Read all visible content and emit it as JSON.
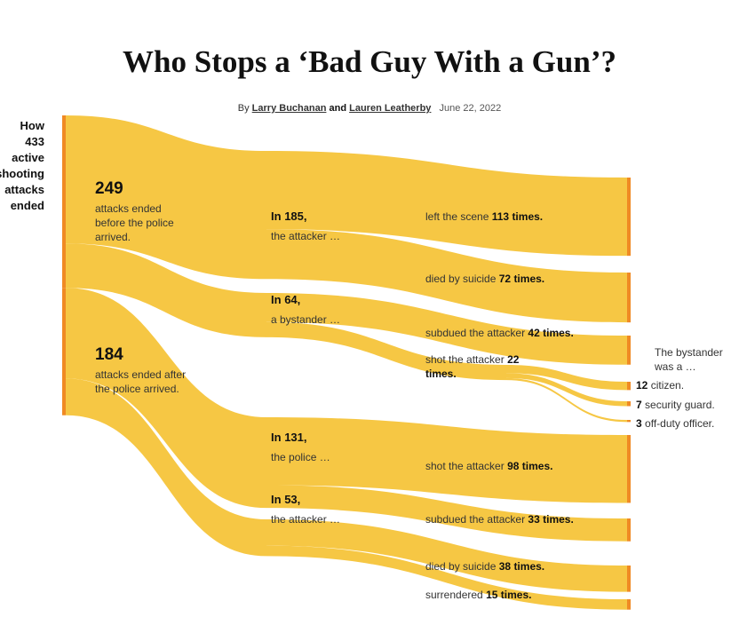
{
  "header": {
    "title": "Who Stops a ‘Bad Guy With a Gun’?",
    "by": "By",
    "authors": [
      "Larry Buchanan",
      "Lauren Leatherby"
    ],
    "and": "and",
    "date": "June 22, 2022"
  },
  "chart_data": {
    "type": "sankey",
    "root": {
      "before": "How",
      "value": 433,
      "after": [
        "active",
        "shooting",
        "attacks",
        "ended"
      ]
    },
    "groups": [
      {
        "value": 249,
        "text": "attacks ended before the police arrived.",
        "children": [
          {
            "prefix": "In",
            "value": 185,
            "suffix": ",",
            "text": "the attacker …",
            "children": [
              {
                "text": "left the scene",
                "value": 113,
                "unit": "times."
              },
              {
                "text": "died by suicide",
                "value": 72,
                "unit": "times."
              }
            ]
          },
          {
            "prefix": "In",
            "value": 64,
            "suffix": ",",
            "text": "a bystander …",
            "children": [
              {
                "text": "subdued the attacker",
                "value": 42,
                "unit": "times."
              },
              {
                "text": "shot the attacker",
                "value": 22,
                "unit": "times.",
                "note": "The bystander was a …",
                "children": [
                  {
                    "value": 12,
                    "text": "citizen."
                  },
                  {
                    "value": 7,
                    "text": "security guard."
                  },
                  {
                    "value": 3,
                    "text": "off-duty officer."
                  }
                ]
              }
            ]
          }
        ]
      },
      {
        "value": 184,
        "text": "attacks ended after the police arrived.",
        "children": [
          {
            "prefix": "In",
            "value": 131,
            "suffix": ",",
            "text": "the police …",
            "children": [
              {
                "text": "shot the attacker",
                "value": 98,
                "unit": "times."
              },
              {
                "text": "subdued the attacker",
                "value": 33,
                "unit": "times."
              }
            ]
          },
          {
            "prefix": "In",
            "value": 53,
            "suffix": ",",
            "text": "the attacker …",
            "children": [
              {
                "text": "died by suicide",
                "value": 38,
                "unit": "times."
              },
              {
                "text": "surrendered",
                "value": 15,
                "unit": "times."
              }
            ]
          }
        ]
      }
    ],
    "flow_color": "#f6c744",
    "bar_color": "#f08a24"
  }
}
